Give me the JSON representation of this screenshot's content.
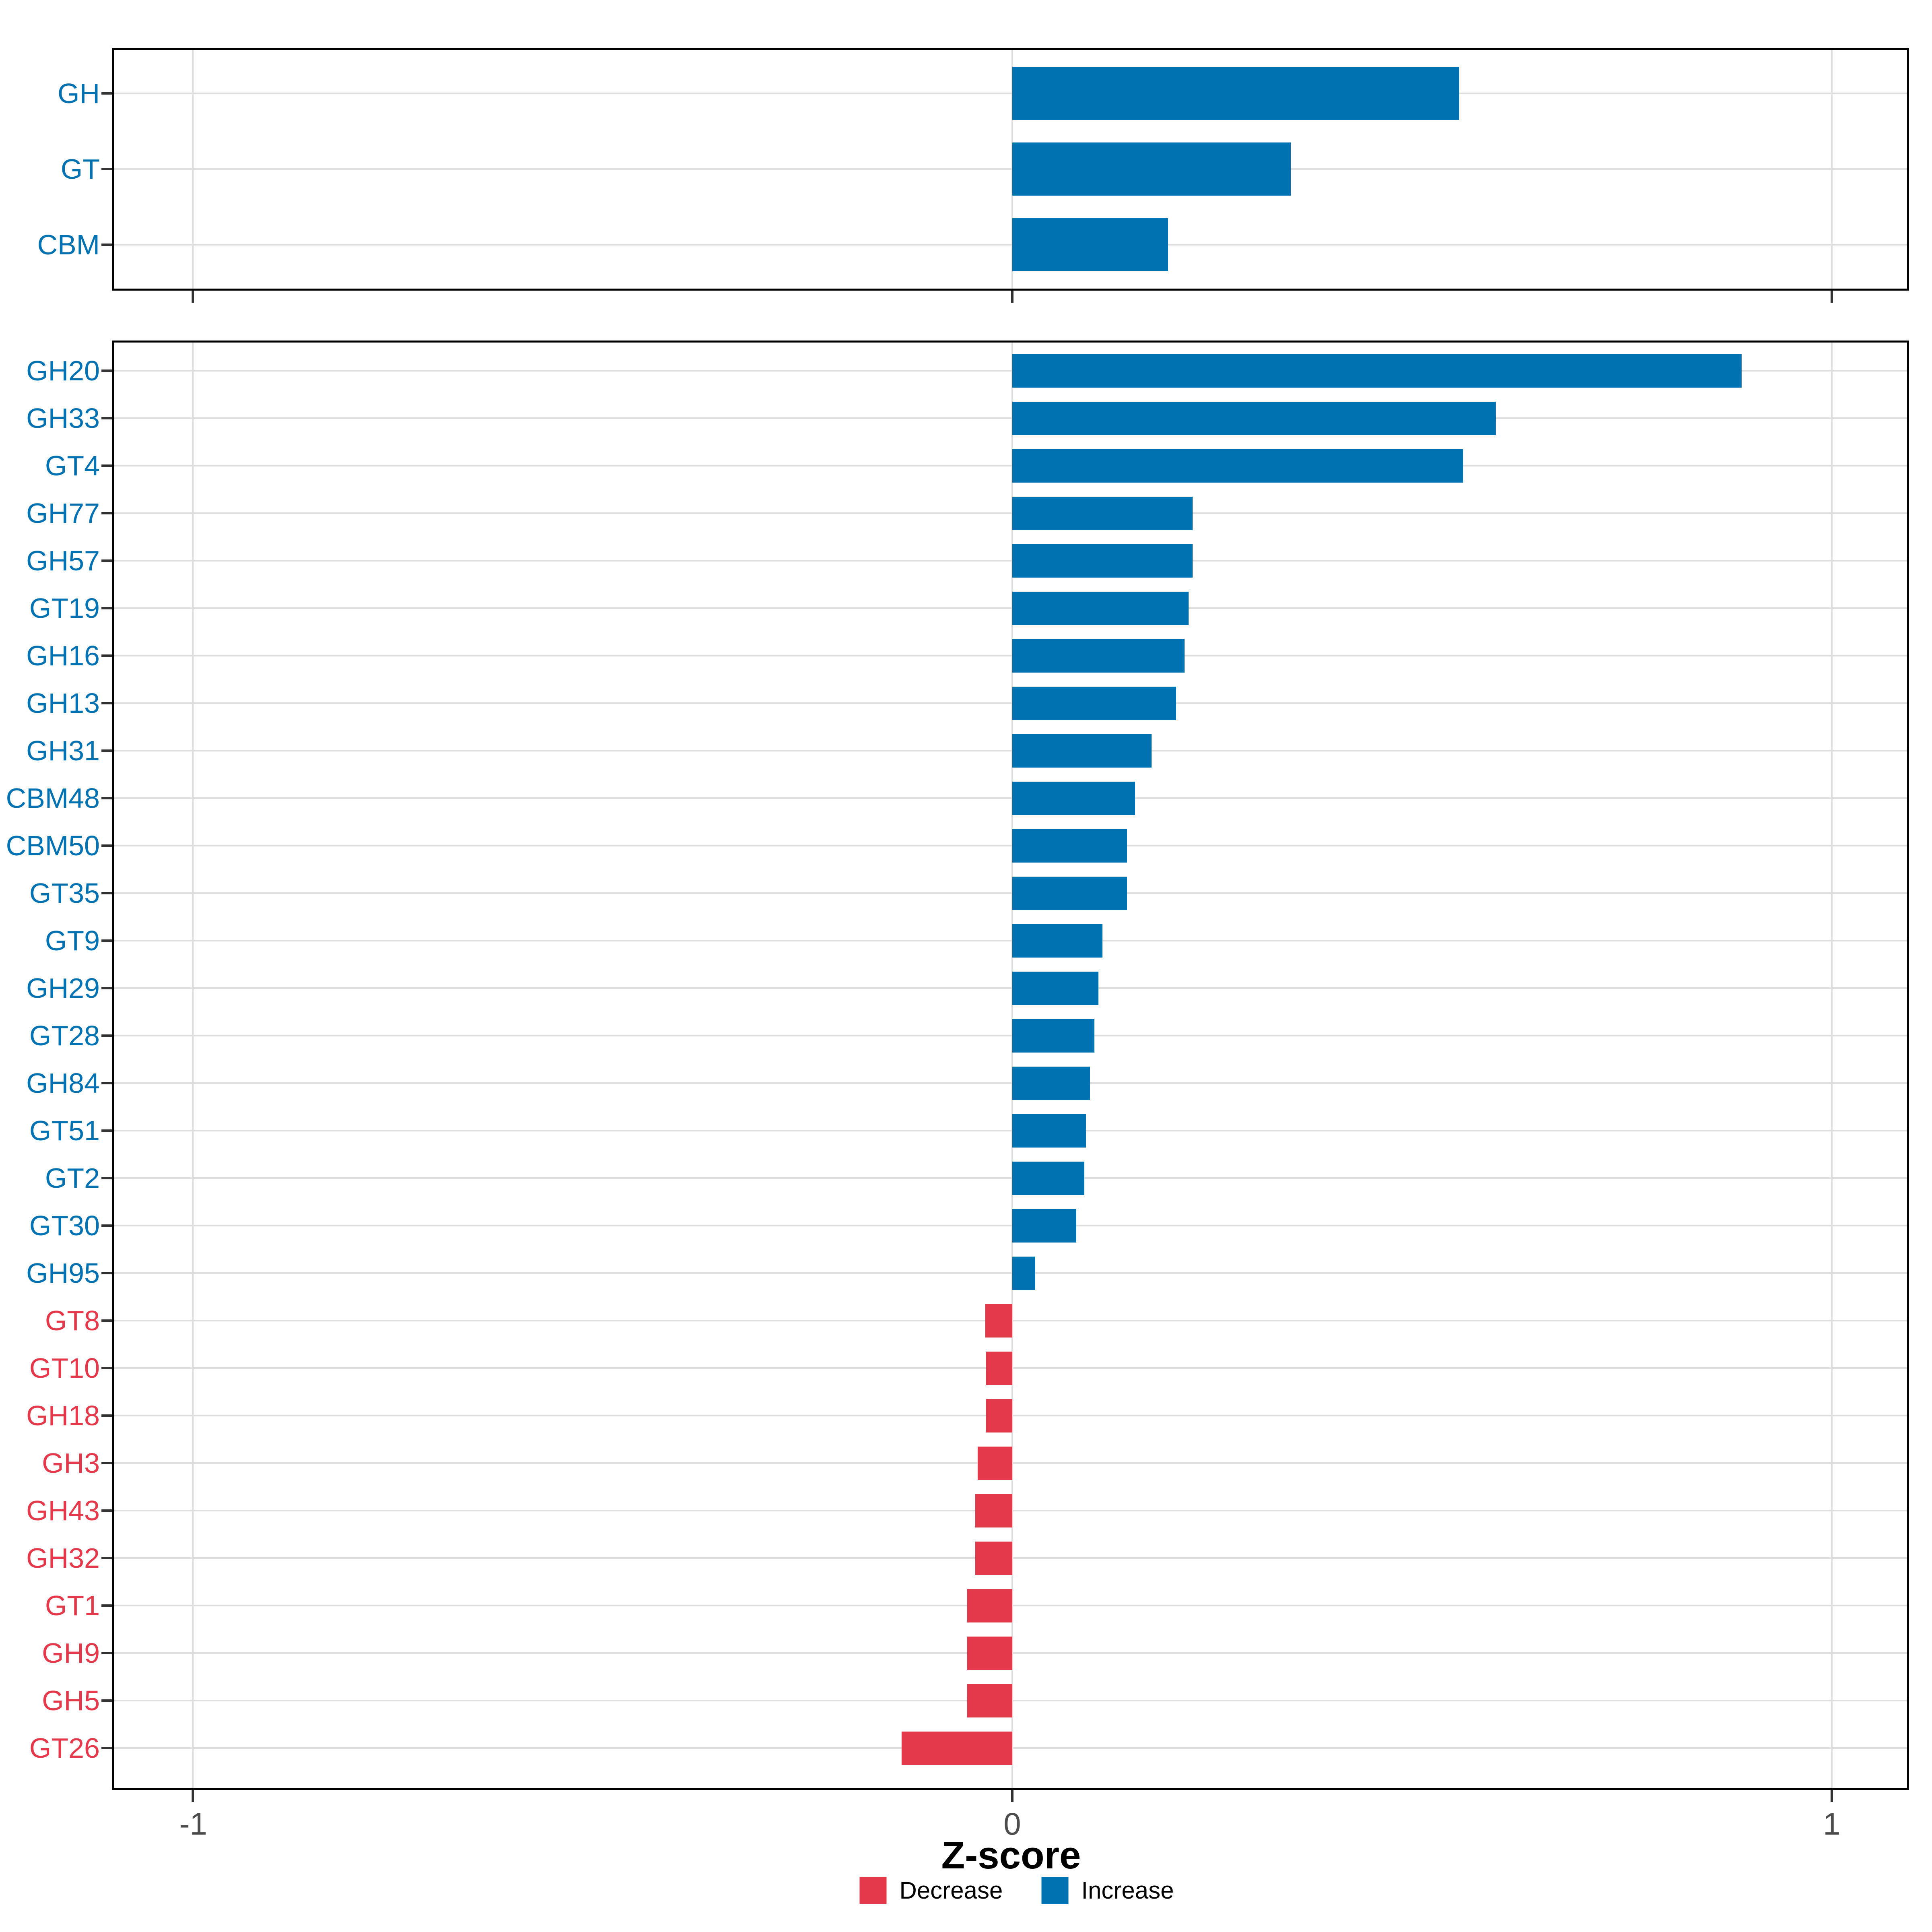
{
  "axis": {
    "title": "Z-score",
    "tick_labels": [
      "-1",
      "0",
      "1"
    ],
    "tick_values": [
      -1,
      0,
      1
    ],
    "range": [
      -1.1,
      1.1
    ]
  },
  "legend": {
    "items": [
      {
        "label": "Decrease",
        "color": "#e3394a"
      },
      {
        "label": "Increase",
        "color": "#0072b2"
      }
    ]
  },
  "colors": {
    "increase": "#0072b2",
    "decrease": "#e3394a",
    "gridline": "#dedede",
    "tick": "#333333",
    "tick_label": "#4d4d4d",
    "panel_border": "#000000",
    "background": "#ffffff"
  },
  "chart_data": [
    {
      "type": "bar",
      "panel": "enzyme-classes",
      "orientation": "horizontal",
      "xlabel": "Z-score",
      "xlim": [
        -1.1,
        1.1
      ],
      "grid": true,
      "categories": [
        "GH",
        "GT",
        "CBM"
      ],
      "values": [
        0.545,
        0.34,
        0.19
      ],
      "directions": [
        "Increase",
        "Increase",
        "Increase"
      ]
    },
    {
      "type": "bar",
      "panel": "cazyme-families",
      "orientation": "horizontal",
      "xlabel": "Z-score",
      "xlim": [
        -1.1,
        1.1
      ],
      "grid": true,
      "categories": [
        "GH20",
        "GH33",
        "GT4",
        "GH77",
        "GH57",
        "GT19",
        "GH16",
        "GH13",
        "GH31",
        "CBM48",
        "CBM50",
        "GT35",
        "GT9",
        "GH29",
        "GT28",
        "GH84",
        "GT51",
        "GT2",
        "GT30",
        "GH95",
        "GT8",
        "GT10",
        "GH18",
        "GH3",
        "GH43",
        "GH32",
        "GT1",
        "GH9",
        "GH5",
        "GT26"
      ],
      "values": [
        0.89,
        0.59,
        0.55,
        0.22,
        0.22,
        0.215,
        0.21,
        0.2,
        0.17,
        0.15,
        0.14,
        0.14,
        0.11,
        0.105,
        0.1,
        0.095,
        0.09,
        0.088,
        0.078,
        0.028,
        -0.033,
        -0.032,
        -0.032,
        -0.042,
        -0.045,
        -0.045,
        -0.055,
        -0.055,
        -0.055,
        -0.135
      ],
      "directions": [
        "Increase",
        "Increase",
        "Increase",
        "Increase",
        "Increase",
        "Increase",
        "Increase",
        "Increase",
        "Increase",
        "Increase",
        "Increase",
        "Increase",
        "Increase",
        "Increase",
        "Increase",
        "Increase",
        "Increase",
        "Increase",
        "Increase",
        "Increase",
        "Decrease",
        "Decrease",
        "Decrease",
        "Decrease",
        "Decrease",
        "Decrease",
        "Decrease",
        "Decrease",
        "Decrease",
        "Decrease"
      ]
    }
  ]
}
